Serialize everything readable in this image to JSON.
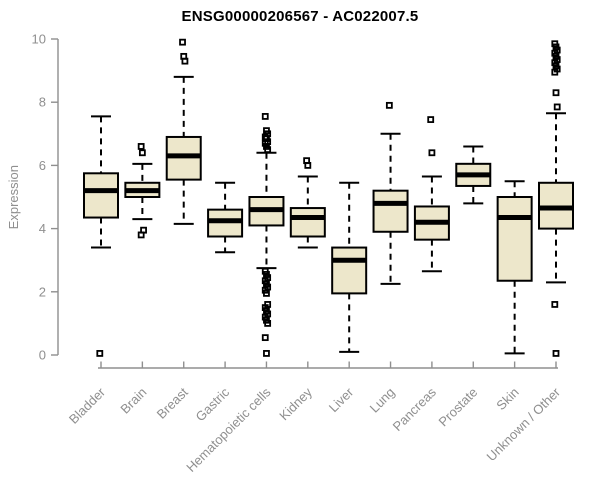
{
  "chart_data": {
    "type": "boxplot",
    "title": "ENSG00000206567 - AC022007.5",
    "ylabel": "Expression",
    "xlabel": "",
    "ylim": [
      0,
      10
    ],
    "yticks": [
      0,
      2,
      4,
      6,
      8,
      10
    ],
    "grid": false,
    "legend_position": "none",
    "colors": {
      "box_fill": "#EDE7CB",
      "box_border": "#000000",
      "median": "#000000",
      "whisker": "#000000",
      "outlier": "#000000",
      "axis": "#8F8F8F",
      "tick_label": "#8F8F8F",
      "title": "#000000",
      "background": "#FFFFFF"
    },
    "categories": [
      "Bladder",
      "Brain",
      "Breast",
      "Gastric",
      "Hematopoietic cells",
      "Kidney",
      "Liver",
      "Lung",
      "Pancreas",
      "Prostate",
      "Skin",
      "Unknown / Other"
    ],
    "boxes": [
      {
        "category": "Bladder",
        "whisker_low": 3.4,
        "q1": 4.35,
        "median": 5.2,
        "q3": 5.75,
        "whisker_high": 7.55,
        "outliers": [
          0.05
        ]
      },
      {
        "category": "Brain",
        "whisker_low": 4.3,
        "q1": 5.0,
        "median": 5.2,
        "q3": 5.45,
        "whisker_high": 6.05,
        "outliers": [
          6.6,
          6.4,
          3.95,
          3.8
        ]
      },
      {
        "category": "Breast",
        "whisker_low": 4.15,
        "q1": 5.55,
        "median": 6.3,
        "q3": 6.9,
        "whisker_high": 8.8,
        "outliers": [
          9.9,
          9.45,
          9.3
        ]
      },
      {
        "category": "Gastric",
        "whisker_low": 3.25,
        "q1": 3.75,
        "median": 4.25,
        "q3": 4.6,
        "whisker_high": 5.45,
        "outliers": []
      },
      {
        "category": "Hematopoietic cells",
        "whisker_low": 2.75,
        "q1": 4.1,
        "median": 4.6,
        "q3": 5.0,
        "whisker_high": 6.4,
        "outliers": [
          7.55,
          7.1,
          7.0,
          6.9,
          6.85,
          6.75,
          6.7,
          6.6,
          6.5,
          2.65,
          2.55,
          2.45,
          2.35,
          2.25,
          2.15,
          2.05,
          1.95,
          1.6,
          1.5,
          1.4,
          1.3,
          1.2,
          1.1,
          1.0,
          0.55,
          0.05
        ]
      },
      {
        "category": "Kidney",
        "whisker_low": 3.4,
        "q1": 3.75,
        "median": 4.35,
        "q3": 4.65,
        "whisker_high": 5.65,
        "outliers": [
          6.15,
          6.0
        ]
      },
      {
        "category": "Liver",
        "whisker_low": 0.1,
        "q1": 1.95,
        "median": 3.0,
        "q3": 3.4,
        "whisker_high": 5.45,
        "outliers": []
      },
      {
        "category": "Lung",
        "whisker_low": 2.25,
        "q1": 3.9,
        "median": 4.8,
        "q3": 5.2,
        "whisker_high": 7.0,
        "outliers": [
          7.9
        ]
      },
      {
        "category": "Pancreas",
        "whisker_low": 2.65,
        "q1": 3.65,
        "median": 4.2,
        "q3": 4.7,
        "whisker_high": 5.65,
        "outliers": [
          7.45,
          6.4
        ]
      },
      {
        "category": "Prostate",
        "whisker_low": 4.8,
        "q1": 5.35,
        "median": 5.7,
        "q3": 6.05,
        "whisker_high": 6.6,
        "outliers": []
      },
      {
        "category": "Skin",
        "whisker_low": 0.05,
        "q1": 2.35,
        "median": 4.35,
        "q3": 5.0,
        "whisker_high": 5.5,
        "outliers": []
      },
      {
        "category": "Unknown / Other",
        "whisker_low": 2.3,
        "q1": 4.0,
        "median": 4.65,
        "q3": 5.45,
        "whisker_high": 7.65,
        "outliers": [
          9.85,
          9.75,
          9.65,
          9.55,
          9.45,
          9.35,
          9.25,
          9.15,
          9.05,
          8.95,
          8.3,
          7.85,
          1.6,
          0.05
        ]
      }
    ]
  }
}
